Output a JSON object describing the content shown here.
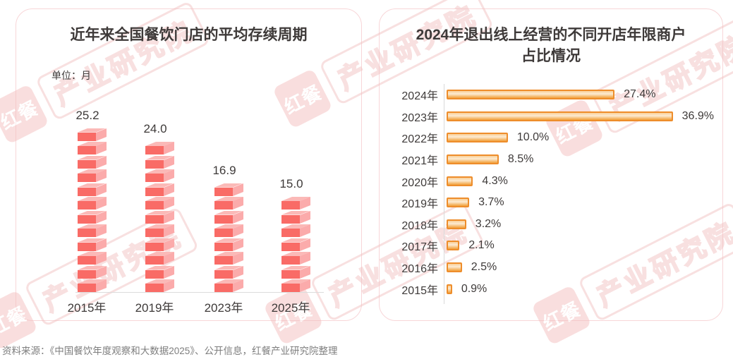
{
  "left_panel": {
    "title": "近年来全国餐饮门店的平均存续周期",
    "unit_label": "单位：月"
  },
  "right_panel": {
    "title_line1": "2024年退出线上经营的不同开店年限商户",
    "title_line2": "占比情况"
  },
  "chart_data": [
    {
      "type": "bar",
      "orientation": "vertical",
      "style": "stacked-3d-cubes",
      "title": "近年来全国餐饮门店的平均存续周期",
      "unit": "月",
      "categories": [
        "2015年",
        "2019年",
        "2023年",
        "2025年"
      ],
      "values": [
        25.2,
        24.0,
        16.9,
        15.0
      ],
      "value_labels": [
        "25.2",
        "24.0",
        "16.9",
        "15.0"
      ],
      "ylim": [
        0,
        28
      ],
      "grid": false,
      "colors": {
        "front": "#F96B66",
        "side": "#FBABAB",
        "top": "#FBB9B7",
        "axis": "#DCDCDC"
      }
    },
    {
      "type": "bar",
      "orientation": "horizontal",
      "title": "2024年退出线上经营的不同开店年限商户占比情况",
      "unit": "%",
      "categories": [
        "2024年",
        "2023年",
        "2022年",
        "2021年",
        "2020年",
        "2019年",
        "2018年",
        "2017年",
        "2016年",
        "2015年"
      ],
      "values": [
        27.4,
        36.9,
        10.0,
        8.5,
        4.3,
        3.7,
        3.2,
        2.1,
        2.5,
        0.9
      ],
      "value_labels": [
        "27.4%",
        "36.9%",
        "10.0%",
        "8.5%",
        "4.3%",
        "3.7%",
        "3.2%",
        "2.1%",
        "2.5%",
        "0.9%"
      ],
      "xlim": [
        0,
        40
      ],
      "grid": false,
      "colors": {
        "bar_border": "#EE8D2B",
        "bar_fill_light": "#FCEBD2",
        "bar_fill_dark": "#F1A03A",
        "axis": "#D9D9D9"
      }
    }
  ],
  "watermark": {
    "logo_text": "红餐",
    "brand_text": "产业研究院",
    "color": "#F2C2C2"
  },
  "source": "资料来源：《中国餐饮年度观察和大数据2025》、公开信息，红餐产业研究院整理"
}
